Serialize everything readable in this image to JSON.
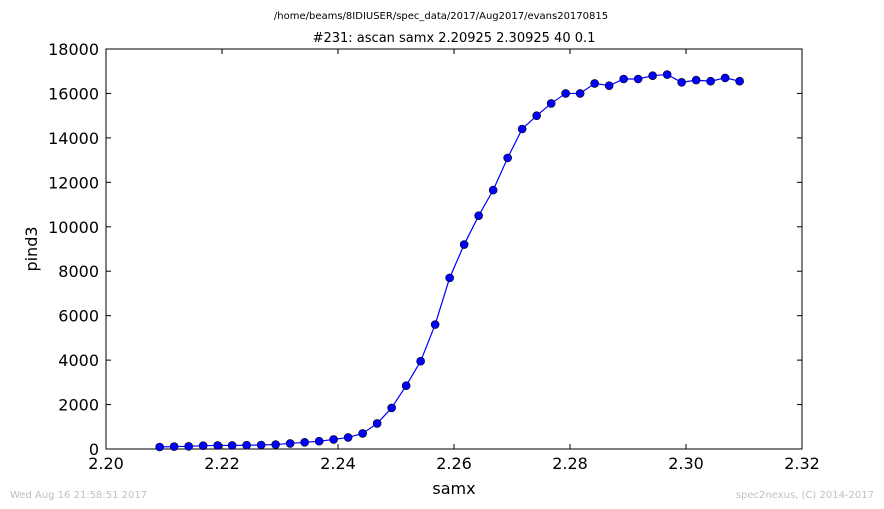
{
  "figure": {
    "suptitle": "/home/beams/8IDIUSER/spec_data/2017/Aug2017/evans20170815",
    "footer_left": "Wed Aug 16 21:58:51 2017",
    "footer_right": "spec2nexus, (C) 2014-2017"
  },
  "chart_data": {
    "type": "line",
    "title": "#231: ascan  samx 2.20925 2.30925  40 0.1",
    "xlabel": "samx",
    "ylabel": "pind3",
    "xlim": [
      2.2,
      2.32
    ],
    "ylim": [
      0,
      18000
    ],
    "xticks": [
      "2.20",
      "2.22",
      "2.24",
      "2.26",
      "2.28",
      "2.30",
      "2.32"
    ],
    "yticks": [
      "0",
      "2000",
      "4000",
      "6000",
      "8000",
      "10000",
      "12000",
      "14000",
      "16000",
      "18000"
    ],
    "grid": false,
    "legend": "none",
    "colors": {
      "line": "#0000ff",
      "marker": "#0000ff"
    },
    "series": [
      {
        "x": [
          2.20925,
          2.21175,
          2.21425,
          2.21675,
          2.21925,
          2.22175,
          2.22425,
          2.22675,
          2.22925,
          2.23175,
          2.23425,
          2.23675,
          2.23925,
          2.24175,
          2.24425,
          2.24675,
          2.24925,
          2.25175,
          2.25425,
          2.25675,
          2.25925,
          2.26175,
          2.26425,
          2.26675,
          2.26925,
          2.27175,
          2.27425,
          2.27675,
          2.27925,
          2.28175,
          2.28425,
          2.28675,
          2.28925,
          2.29175,
          2.29425,
          2.29675,
          2.29925,
          2.30175,
          2.30425,
          2.30675,
          2.30925
        ],
        "y": [
          90,
          110,
          120,
          150,
          160,
          160,
          170,
          180,
          200,
          250,
          300,
          350,
          430,
          520,
          700,
          1150,
          1850,
          2850,
          3950,
          5600,
          7700,
          9200,
          10500,
          11650,
          13100,
          14400,
          15000,
          15550,
          16000,
          16000,
          16450,
          16350,
          16650,
          16650,
          16800,
          16850,
          16500,
          16600,
          16550,
          16700,
          16550
        ]
      }
    ]
  }
}
